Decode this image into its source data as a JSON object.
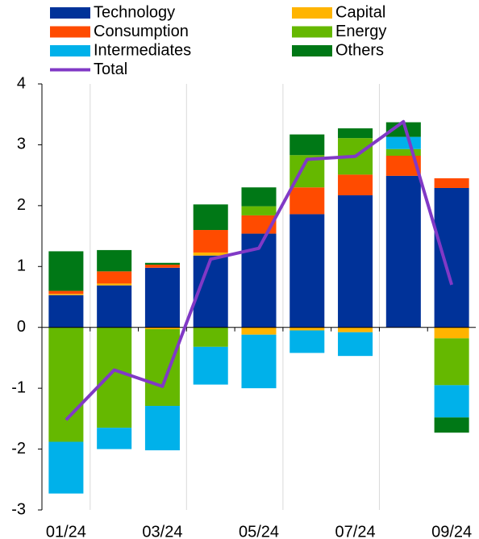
{
  "chart_data": {
    "type": "bar",
    "stacked": true,
    "categories": [
      "01/24",
      null,
      "03/24",
      null,
      "05/24",
      null,
      "07/24",
      null,
      "09/24"
    ],
    "ylim": [
      -3,
      4
    ],
    "yticks": [
      -3,
      -2,
      -1,
      0,
      1,
      2,
      3,
      4
    ],
    "grid": false,
    "series": [
      {
        "name": "Technology",
        "color": "#003299",
        "values": [
          0.53,
          0.69,
          0.98,
          1.18,
          1.54,
          1.86,
          2.17,
          2.49,
          2.29
        ]
      },
      {
        "name": "Capital",
        "color": "#ffb400",
        "values": [
          0.02,
          0.03,
          -0.03,
          0.05,
          -0.12,
          -0.05,
          -0.08,
          0,
          -0.18
        ]
      },
      {
        "name": "Consumption",
        "color": "#ff4b00",
        "values": [
          0.05,
          0.2,
          0.05,
          0.37,
          0.3,
          0.44,
          0.34,
          0.33,
          0.16
        ]
      },
      {
        "name": "Energy",
        "color": "#65b800",
        "values": [
          -1.88,
          -1.65,
          -1.26,
          -0.32,
          0.15,
          0.53,
          0.6,
          0.11,
          -0.77
        ]
      },
      {
        "name": "Intermediates",
        "color": "#00b1ea",
        "values": [
          -0.85,
          -0.35,
          -0.73,
          -0.62,
          -0.88,
          -0.37,
          -0.39,
          0.2,
          -0.53
        ]
      },
      {
        "name": "Others",
        "color": "#007816",
        "values": [
          0.65,
          0.35,
          0.03,
          0.42,
          0.31,
          0.34,
          0.16,
          0.24,
          -0.25
        ]
      },
      {
        "name": "Total",
        "color": "#8139c6",
        "type": "line",
        "values": [
          -1.52,
          -0.7,
          -0.97,
          1.12,
          1.3,
          2.76,
          2.81,
          3.38,
          0.7
        ]
      }
    ]
  }
}
